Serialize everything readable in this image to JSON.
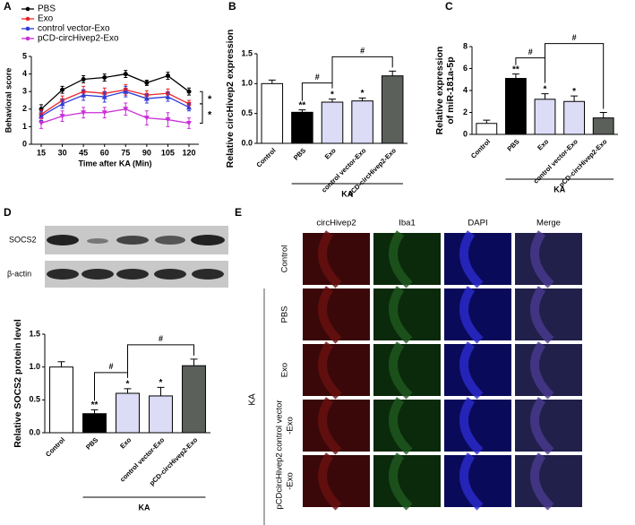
{
  "chart_data": [
    {
      "type": "line",
      "panel": "A",
      "ylabel": "Behavioral score",
      "xlabel": "Time after KA (Min)",
      "x": [
        15,
        30,
        45,
        60,
        75,
        90,
        105,
        120
      ],
      "xlim": [
        8,
        127
      ],
      "xticks": [
        15,
        30,
        45,
        60,
        75,
        90,
        105,
        120
      ],
      "ylim": [
        0,
        5
      ],
      "yticks": [
        0,
        1,
        2,
        3,
        4,
        5
      ],
      "series": [
        {
          "name": "PBS",
          "color": "#000000",
          "values": [
            2.0,
            3.1,
            3.7,
            3.8,
            4.0,
            3.5,
            3.9,
            3.0
          ],
          "errors": [
            0.25,
            0.2,
            0.2,
            0.2,
            0.2,
            0.15,
            0.2,
            0.2
          ]
        },
        {
          "name": "Exo",
          "color": "#e8262a",
          "values": [
            1.7,
            2.5,
            3.0,
            2.9,
            3.1,
            2.8,
            2.9,
            2.3
          ],
          "errors": [
            0.25,
            0.25,
            0.3,
            0.3,
            0.3,
            0.25,
            0.25,
            0.2
          ]
        },
        {
          "name": "control vector-Exo",
          "color": "#2f3bd6",
          "values": [
            1.6,
            2.3,
            2.8,
            2.7,
            3.0,
            2.6,
            2.7,
            2.1
          ],
          "errors": [
            0.25,
            0.25,
            0.3,
            0.3,
            0.3,
            0.25,
            0.25,
            0.2
          ]
        },
        {
          "name": "pCD-circHivep2-Exo",
          "color": "#c92fd6",
          "values": [
            1.2,
            1.6,
            1.8,
            1.8,
            2.0,
            1.5,
            1.4,
            1.2
          ],
          "errors": [
            0.3,
            0.3,
            0.3,
            0.3,
            0.35,
            0.4,
            0.4,
            0.3
          ]
        }
      ],
      "annotations": [
        "*",
        "*"
      ]
    },
    {
      "type": "bar",
      "panel": "B",
      "ylabel": [
        "Relative circHivep2 expression"
      ],
      "categories": [
        "Control",
        "PBS",
        "Exo",
        "control vector-Exo",
        "pCD-circHivep2-Exo"
      ],
      "values": [
        1.0,
        0.52,
        0.69,
        0.71,
        1.13
      ],
      "errors": [
        0.06,
        0.04,
        0.05,
        0.05,
        0.08
      ],
      "colors": [
        "#ffffff",
        "#000000",
        "#dcdcf7",
        "#dcdcf7",
        "#5b605b"
      ],
      "significance": [
        null,
        "**",
        "*",
        "*",
        null
      ],
      "group_label": "KA",
      "annotations": [
        "#",
        "#"
      ],
      "ylim": [
        0,
        1.5
      ],
      "yticks": [
        {
          "value": 0,
          "label": "0.0"
        },
        {
          "value": 0.5,
          "label": "0.5"
        },
        {
          "value": 1,
          "label": "1.0"
        },
        {
          "value": 1.5,
          "label": "1.5"
        }
      ]
    },
    {
      "type": "bar",
      "panel": "C",
      "ylabel": [
        "Relative expression",
        "of miR-181a-5p"
      ],
      "categories": [
        "Control",
        "PBS",
        "Exo",
        "control vector-Exo",
        "pCD-circHivep2-Exo"
      ],
      "values": [
        1.0,
        5.1,
        3.2,
        3.0,
        1.5
      ],
      "errors": [
        0.3,
        0.4,
        0.5,
        0.5,
        0.5
      ],
      "colors": [
        "#ffffff",
        "#000000",
        "#dcdcf7",
        "#dcdcf7",
        "#5b605b"
      ],
      "significance": [
        null,
        "**",
        "*",
        "*",
        null
      ],
      "group_label": "KA",
      "annotations": [
        "#",
        "#"
      ],
      "ylim": [
        0,
        8
      ],
      "yticks": [
        0,
        2,
        4,
        6,
        8
      ]
    },
    {
      "type": "bar",
      "panel": "D",
      "ylabel": [
        "Relative SOCS2 protein level"
      ],
      "blot_labels": [
        "SOCS2",
        "β-actin"
      ],
      "categories": [
        "Control",
        "PBS",
        "Exo",
        "control vector-Exo",
        "pCD-circHivep2-Exo"
      ],
      "values": [
        1.0,
        0.29,
        0.6,
        0.56,
        1.02
      ],
      "errors": [
        0.08,
        0.06,
        0.07,
        0.13,
        0.1
      ],
      "colors": [
        "#ffffff",
        "#000000",
        "#dcdcf7",
        "#dcdcf7",
        "#5b605b"
      ],
      "significance": [
        null,
        "**",
        "*",
        "*",
        null
      ],
      "group_label": "KA",
      "annotations": [
        "#",
        "#"
      ],
      "ylim": [
        0,
        1.5
      ],
      "yticks": [
        {
          "value": 0,
          "label": "0.0"
        },
        {
          "value": 0.5,
          "label": "0.5"
        },
        {
          "value": 1,
          "label": "1.0"
        },
        {
          "value": 1.5,
          "label": "1.5"
        }
      ]
    }
  ],
  "images": {
    "panel": "E",
    "columns": [
      "circHivep2",
      "Iba1",
      "DAPI",
      "Merge"
    ],
    "rows": [
      [
        "Control"
      ],
      [
        "PBS"
      ],
      [
        "Exo"
      ],
      [
        "control vector",
        "-Exo"
      ],
      [
        "pCDcircHivep2",
        "-Exo"
      ]
    ],
    "group_label": "KA"
  }
}
